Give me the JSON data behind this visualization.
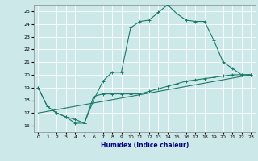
{
  "xlabel": "Humidex (Indice chaleur)",
  "bg_color": "#cce8e8",
  "grid_color": "#ffffff",
  "line_color": "#1a7a6a",
  "xlabel_color": "#00008b",
  "xlim": [
    -0.5,
    23.5
  ],
  "ylim": [
    15.5,
    25.5
  ],
  "yticks": [
    16,
    17,
    18,
    19,
    20,
    21,
    22,
    23,
    24,
    25
  ],
  "xticks": [
    0,
    1,
    2,
    3,
    4,
    5,
    6,
    7,
    8,
    9,
    10,
    11,
    12,
    13,
    14,
    15,
    16,
    17,
    18,
    19,
    20,
    21,
    22,
    23
  ],
  "line1_x": [
    0,
    1,
    2,
    3,
    4,
    5,
    6,
    7,
    8,
    9,
    10,
    11,
    12,
    13,
    14,
    15,
    16,
    17,
    18,
    19,
    20,
    21,
    22,
    23
  ],
  "line1_y": [
    19.0,
    17.5,
    17.0,
    16.7,
    16.2,
    16.2,
    18.0,
    19.5,
    20.2,
    20.2,
    23.7,
    24.2,
    24.3,
    24.9,
    25.5,
    24.8,
    24.3,
    24.2,
    24.2,
    22.7,
    21.0,
    20.5,
    20.0,
    20.0
  ],
  "line2_x": [
    0,
    1,
    2,
    3,
    4,
    5,
    6,
    7,
    8,
    9,
    10,
    11,
    12,
    13,
    14,
    15,
    16,
    17,
    18,
    19,
    20,
    21,
    22,
    23
  ],
  "line2_y": [
    19.0,
    17.5,
    17.0,
    16.7,
    16.5,
    16.2,
    18.3,
    18.5,
    18.5,
    18.5,
    18.5,
    18.5,
    18.7,
    18.9,
    19.1,
    19.3,
    19.5,
    19.6,
    19.7,
    19.8,
    19.9,
    20.0,
    20.0,
    20.0
  ],
  "line3_x": [
    0,
    23
  ],
  "line3_y": [
    17.0,
    20.0
  ]
}
